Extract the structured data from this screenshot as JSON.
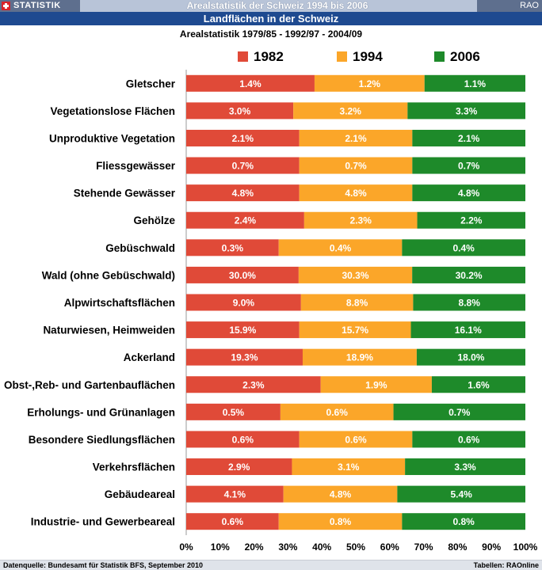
{
  "header": {
    "brand": "STATISTIK",
    "title": "Arealstatistik der Schweiz 1994 bis 2006",
    "badge": "RAO",
    "section": "Landflächen in der Schweiz"
  },
  "colors": {
    "s1982": "#e04a38",
    "s1994": "#fba629",
    "s2006": "#1e8a2a"
  },
  "chart_data": {
    "type": "bar",
    "orientation": "horizontal",
    "stacked": "100%",
    "title": "Arealstatistik 1979/85 - 1992/97 - 2004/09",
    "legend_position": "top",
    "xlim": [
      0,
      100
    ],
    "x_ticks": [
      "0%",
      "10%",
      "20%",
      "30%",
      "40%",
      "50%",
      "60%",
      "70%",
      "80%",
      "90%",
      "100%"
    ],
    "categories": [
      "Gletscher",
      "Vegetationslose Flächen",
      "Unproduktive Vegetation",
      "Fliessgewässer",
      "Stehende Gewässer",
      "Gehölze",
      "Gebüschwald",
      "Wald (ohne Gebüschwald)",
      "Alpwirtschaftsflächen",
      "Naturwiesen, Heimweiden",
      "Ackerland",
      "Obst-,Reb- und Gartenbauflächen",
      "Erholungs- und Grünanlagen",
      "Besondere Siedlungsflächen",
      "Verkehrsflächen",
      "Gebäudeareal",
      "Industrie- und Gewerbeareal"
    ],
    "series": [
      {
        "name": "1982",
        "values": [
          1.4,
          3.0,
          2.1,
          0.7,
          4.8,
          2.4,
          0.3,
          30.0,
          9.0,
          15.9,
          19.3,
          2.3,
          0.5,
          0.6,
          2.9,
          4.1,
          0.6
        ],
        "labels": [
          "1.4%",
          "3.0%",
          "2.1%",
          "0.7%",
          "4.8%",
          "2.4%",
          "0.3%",
          "30.0%",
          "9.0%",
          "15.9%",
          "19.3%",
          "2.3%",
          "0.5%",
          "0.6%",
          "2.9%",
          "4.1%",
          "0.6%"
        ]
      },
      {
        "name": "1994",
        "values": [
          1.2,
          3.2,
          2.1,
          0.7,
          4.8,
          2.3,
          0.4,
          30.3,
          8.8,
          15.7,
          18.9,
          1.9,
          0.6,
          0.6,
          3.1,
          4.8,
          0.8
        ],
        "labels": [
          "1.2%",
          "3.2%",
          "2.1%",
          "0.7%",
          "4.8%",
          "2.3%",
          "0.4%",
          "30.3%",
          "8.8%",
          "15.7%",
          "18.9%",
          "1.9%",
          "0.6%",
          "0.6%",
          "3.1%",
          "4.8%",
          "0.8%"
        ]
      },
      {
        "name": "2006",
        "values": [
          1.1,
          3.3,
          2.1,
          0.7,
          4.8,
          2.2,
          0.4,
          30.2,
          8.8,
          16.1,
          18.0,
          1.6,
          0.7,
          0.6,
          3.3,
          5.4,
          0.8
        ],
        "labels": [
          "1.1%",
          "3.3%",
          "2.1%",
          "0.7%",
          "4.8%",
          "2.2%",
          "0.4%",
          "30.2%",
          "8.8%",
          "16.1%",
          "18.0%",
          "1.6%",
          "0.7%",
          "0.6%",
          "3.3%",
          "5.4%",
          "0.8%"
        ]
      }
    ]
  },
  "footer": {
    "source": "Datenquelle: Bundesamt für Statistik BFS, September 2010",
    "credit": "Tabellen: RAOnline"
  }
}
